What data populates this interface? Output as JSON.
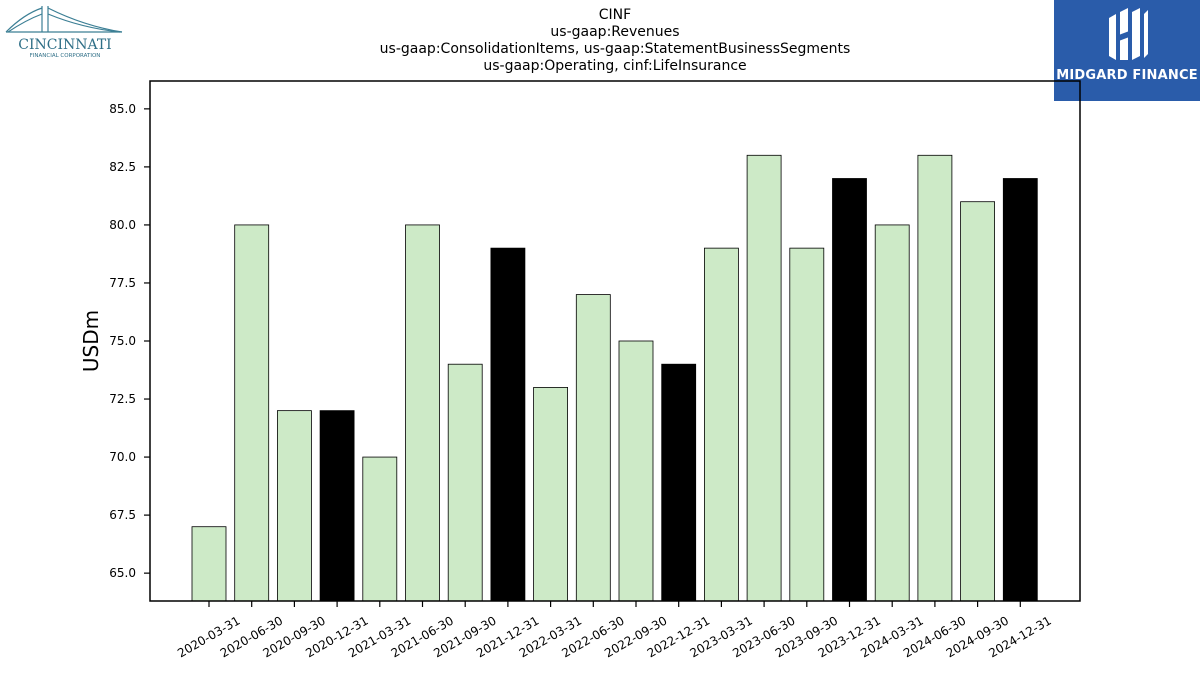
{
  "header": {
    "title_lines": [
      "CINF",
      "us-gaap:Revenues",
      "us-gaap:ConsolidationItems, us-gaap:StatementBusinessSegments",
      "us-gaap:Operating, cinf:LifeInsurance"
    ]
  },
  "logos": {
    "left": {
      "name": "CINCINNATI",
      "subtitle": "FINANCIAL CORPORATION"
    },
    "right": {
      "name": "MIDGARD FINANCE"
    }
  },
  "colors": {
    "bar_default": "#cdeac7",
    "bar_year_end": "#000000",
    "bar_edge": "#000000",
    "right_logo_bg": "#2a5caa"
  },
  "chart_data": {
    "type": "bar",
    "title": "CINF",
    "ylabel": "USDm",
    "xlabel": "",
    "ylim": [
      63.8,
      86.2
    ],
    "yticks": [
      65.0,
      67.5,
      70.0,
      72.5,
      75.0,
      77.5,
      80.0,
      82.5,
      85.0
    ],
    "ytick_labels": [
      "65.0",
      "67.5",
      "70.0",
      "72.5",
      "75.0",
      "77.5",
      "80.0",
      "82.5",
      "85.0"
    ],
    "grid": false,
    "categories": [
      "2020-03-31",
      "2020-06-30",
      "2020-09-30",
      "2020-12-31",
      "2021-03-31",
      "2021-06-30",
      "2021-09-30",
      "2021-12-31",
      "2022-03-31",
      "2022-06-30",
      "2022-09-30",
      "2022-12-31",
      "2023-03-31",
      "2023-06-30",
      "2023-09-30",
      "2023-12-31",
      "2024-03-31",
      "2024-06-30",
      "2024-09-30",
      "2024-12-31"
    ],
    "values": [
      67,
      80,
      72,
      72,
      70,
      80,
      74,
      79,
      73,
      77,
      75,
      74,
      79,
      83,
      79,
      82,
      80,
      83,
      81,
      82
    ]
  }
}
